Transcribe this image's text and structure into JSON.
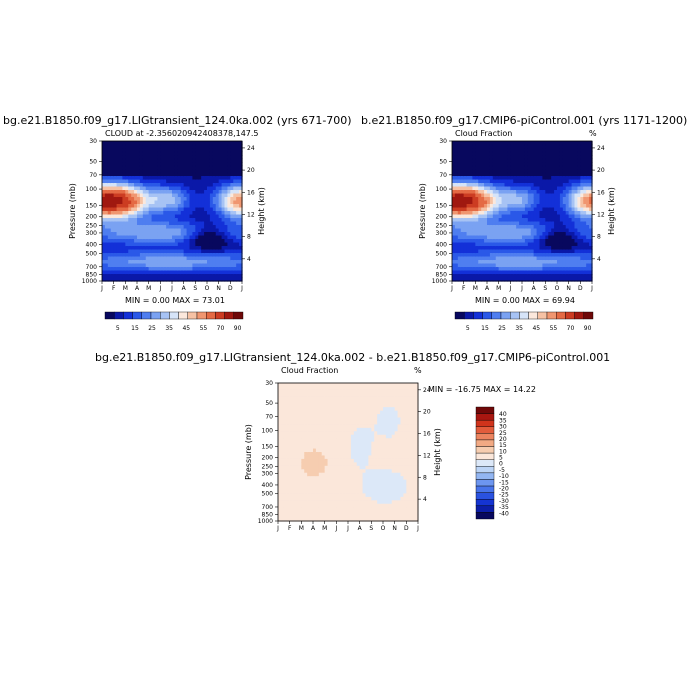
{
  "panels": [
    {
      "title": "bg.e21.B1850.f09_g17.LIGtransient_124.0ka.002 (yrs 671-700)",
      "subtitle_left": "CLOUD at -2.356020942408378,147.5",
      "subtitle_right": "",
      "minmax": "MIN =   0.00 MAX =  73.01",
      "ylabel": "Pressure (mb)",
      "ylabel_right": "Height (km)"
    },
    {
      "title": "b.e21.B1850.f09_g17.CMIP6-piControl.001 (yrs 1171-1200)",
      "subtitle_left": "Cloud Fraction",
      "subtitle_right": "%",
      "minmax": "MIN =   0.00 MAX =  69.94",
      "ylabel": "Pressure (mb)",
      "ylabel_right": "Height (km)"
    },
    {
      "title": "bg.e21.B1850.f09_g17.LIGtransient_124.0ka.002 - b.e21.B1850.f09_g17.CMIP6-piControl.001",
      "subtitle_left": "Cloud Fraction",
      "subtitle_right": "%",
      "minmax": "MIN = -16.75 MAX =  14.22",
      "ylabel": "Pressure (mb)",
      "ylabel_right": "Height (km)"
    }
  ],
  "chart_data": [
    {
      "type": "heatmap",
      "x": [
        "J",
        "F",
        "M",
        "A",
        "M",
        "J",
        "J",
        "A",
        "S",
        "O",
        "N",
        "D",
        "J"
      ],
      "y_pressure_ticks": [
        "30",
        "50",
        "70",
        "100",
        "150",
        "200",
        "250",
        "300",
        "400",
        "500",
        "700",
        "850",
        "1000"
      ],
      "y_height_ticks": [
        "24",
        "20",
        "16",
        "12",
        "8",
        "4"
      ],
      "colorbar_labels": [
        "5",
        "15",
        "25",
        "35",
        "45",
        "55",
        "70",
        "90"
      ],
      "zlim": [
        0,
        95
      ]
    },
    {
      "type": "heatmap",
      "x": [
        "J",
        "F",
        "M",
        "A",
        "M",
        "J",
        "J",
        "A",
        "S",
        "O",
        "N",
        "D",
        "J"
      ],
      "y_pressure_ticks": [
        "30",
        "50",
        "70",
        "100",
        "150",
        "200",
        "250",
        "300",
        "400",
        "500",
        "700",
        "850",
        "1000"
      ],
      "y_height_ticks": [
        "24",
        "20",
        "16",
        "12",
        "8",
        "4"
      ],
      "colorbar_labels": [
        "5",
        "15",
        "25",
        "35",
        "45",
        "55",
        "70",
        "90"
      ],
      "zlim": [
        0,
        95
      ]
    },
    {
      "type": "heatmap",
      "x": [
        "J",
        "F",
        "M",
        "A",
        "M",
        "J",
        "J",
        "A",
        "S",
        "O",
        "N",
        "D",
        "J"
      ],
      "y_pressure_ticks": [
        "30",
        "50",
        "70",
        "100",
        "150",
        "200",
        "250",
        "300",
        "400",
        "500",
        "700",
        "850",
        "1000"
      ],
      "y_height_ticks": [
        "24",
        "20",
        "16",
        "12",
        "8",
        "4"
      ],
      "colorbar_labels": [
        "40",
        "35",
        "30",
        "25",
        "20",
        "15",
        "10",
        "5",
        "0",
        "-5",
        "-10",
        "-15",
        "-20",
        "-25",
        "-30",
        "-35",
        "-40"
      ],
      "zlim": [
        -45,
        45
      ]
    }
  ],
  "colors": {
    "seq": [
      "#08085e",
      "#0a18a8",
      "#1330d8",
      "#2a58e8",
      "#4f7ef0",
      "#7aa2f2",
      "#a7c3f4",
      "#d6e4f8",
      "#fbe8dc",
      "#f6c2a4",
      "#f09670",
      "#e46a44",
      "#cc3c22",
      "#a01810",
      "#6e0808"
    ],
    "div": [
      "#08085e",
      "#0c1ea8",
      "#1534d2",
      "#2a52e0",
      "#4874ea",
      "#6d96f0",
      "#93b6f2",
      "#bcd4f6",
      "#dce8f8",
      "#fbe7da",
      "#f6cdb0",
      "#f2aa84",
      "#ec8460",
      "#e25c3c",
      "#d0341c",
      "#a81610",
      "#700808"
    ]
  }
}
